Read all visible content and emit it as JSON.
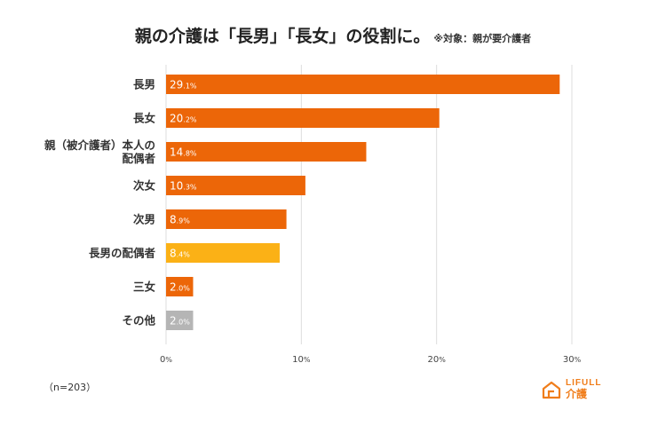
{
  "title": {
    "main": "親の介護は「長男」「長女」の役割に。",
    "note": "※対象：親が要介護者"
  },
  "chart_data": {
    "type": "bar",
    "orientation": "horizontal",
    "categories": [
      "長男",
      "長女",
      "親（被介護者）本人の配偶者",
      "次女",
      "次男",
      "長男の配偶者",
      "三女",
      "その他"
    ],
    "category_lines": [
      [
        "長男"
      ],
      [
        "長女"
      ],
      [
        "親（被介護者）本人の",
        "配偶者"
      ],
      [
        "次女"
      ],
      [
        "次男"
      ],
      [
        "長男の配偶者"
      ],
      [
        "三女"
      ],
      [
        "その他"
      ]
    ],
    "values": [
      29.1,
      20.2,
      14.8,
      10.3,
      8.9,
      8.4,
      2.0,
      2.0
    ],
    "bar_colors": [
      "#ec6608",
      "#ec6608",
      "#ec6608",
      "#ec6608",
      "#ec6608",
      "#fbb116",
      "#ec6608",
      "#b5b5b5"
    ],
    "value_labels": [
      {
        "main": "29",
        "small": ".1%"
      },
      {
        "main": "20",
        "small": ".2%"
      },
      {
        "main": "14",
        "small": ".8%"
      },
      {
        "main": "10",
        "small": ".3%"
      },
      {
        "main": "8",
        "small": ".9%"
      },
      {
        "main": "8",
        "small": ".4%"
      },
      {
        "main": "2",
        "small": ".0%"
      },
      {
        "main": "2",
        "small": ".0%"
      }
    ],
    "xlim": [
      0,
      30
    ],
    "x_ticks": [
      0,
      10,
      20,
      30
    ],
    "x_tick_labels": [
      {
        "main": "0",
        "small": "%"
      },
      {
        "main": "10",
        "small": "%"
      },
      {
        "main": "20",
        "small": "%"
      },
      {
        "main": "30",
        "small": "%"
      }
    ],
    "grid": true,
    "xlabel": "",
    "ylabel": ""
  },
  "footnote": "（n=203）",
  "logo": {
    "line1": "LIFULL",
    "line2": "介護",
    "icon": "house-icon",
    "color": "#f07d1a"
  }
}
